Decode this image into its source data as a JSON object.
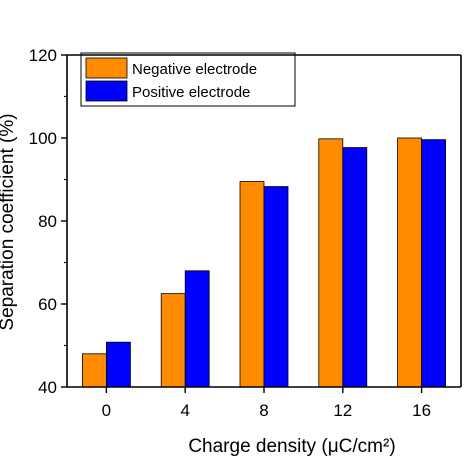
{
  "chart_data": {
    "type": "bar",
    "categories": [
      "0",
      "4",
      "8",
      "12",
      "16"
    ],
    "series": [
      {
        "name": "Negative electrode",
        "color": "#ff8c00",
        "values": [
          48.0,
          62.5,
          89.5,
          99.8,
          100.0
        ]
      },
      {
        "name": "Positive electrode",
        "color": "#0000ff",
        "values": [
          50.8,
          68.0,
          88.3,
          97.7,
          99.6
        ]
      }
    ],
    "xlabel": "Charge density (μC/cm²)",
    "ylabel": "Separation coefficient (%)",
    "ylim": [
      40,
      120
    ],
    "yticks": [
      40,
      60,
      80,
      100,
      120
    ],
    "legend_position": "top-left",
    "grid": false
  }
}
